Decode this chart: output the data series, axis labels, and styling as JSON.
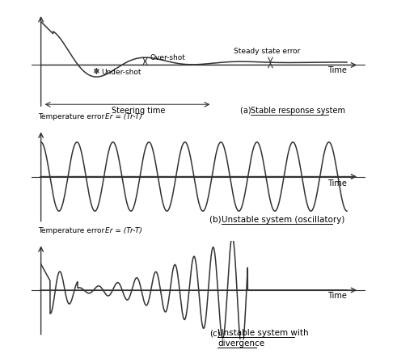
{
  "fig_width": 4.91,
  "fig_height": 4.39,
  "dpi": 100,
  "bg_color": "#ffffff",
  "line_color": "#333333",
  "panel_a": {
    "overshot_text": "Over-shot",
    "undershot_text": "Under-shot",
    "steady_text": "Steady state error",
    "steering_text": "Steering time",
    "time_text": "Time",
    "label_prefix": "(a) ",
    "label_underlined": "Stable response system"
  },
  "panel_b": {
    "ylabel_normal": "Temperature error  ",
    "ylabel_italic": "Er = (Tr-T)",
    "time_text": "Time",
    "label_prefix": "(b) ",
    "label_underlined": "Unstable system (oscillatory)"
  },
  "panel_c": {
    "ylabel_normal": "Temperature error  ",
    "ylabel_italic": "Er = (Tr-T)",
    "time_text": "Time",
    "label_prefix": "(c)",
    "label_underlined1": "Unstable system with",
    "label_underlined2": "divergence"
  }
}
